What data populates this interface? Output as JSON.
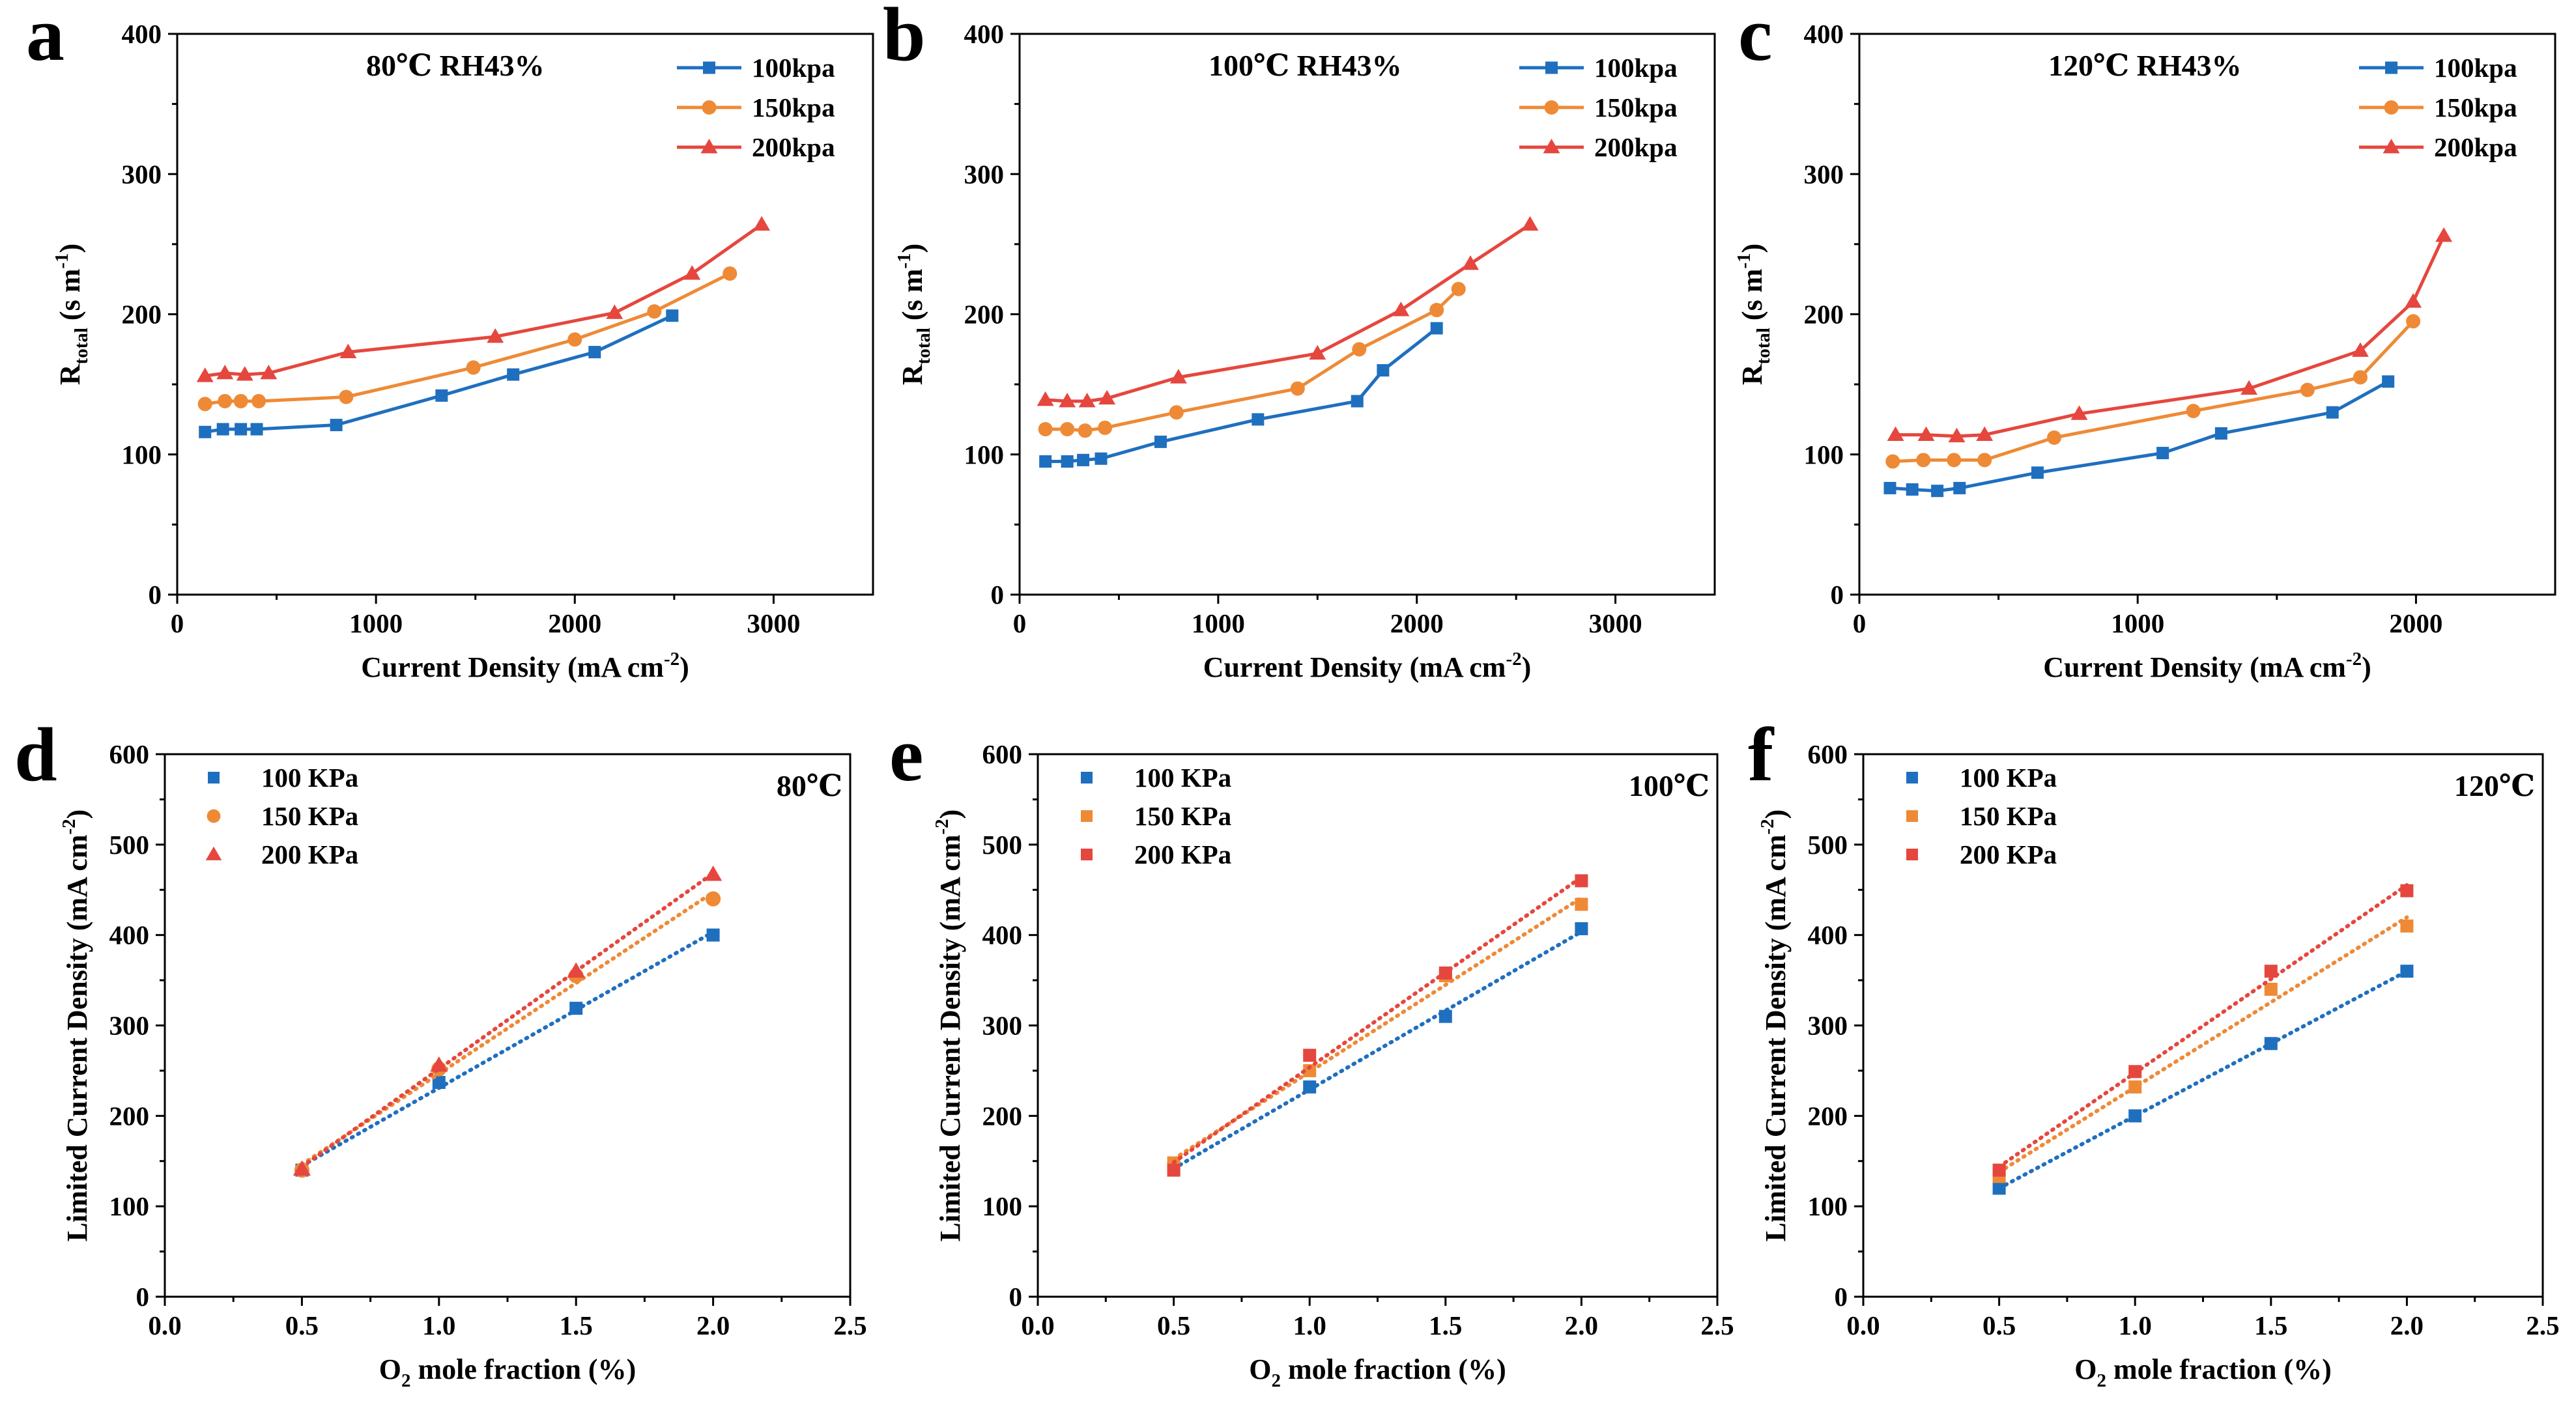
{
  "colors": {
    "series_1": "#1f6fbf",
    "series_2": "#ee8a36",
    "series_3": "#e5473e",
    "axis": "#000000"
  },
  "chart_data": [
    {
      "panel": "a",
      "type": "line",
      "title": "80℃ RH43%",
      "xlabel": "Current Density (mA cm",
      "xlabel_sup": "-2",
      "xlabel_tail": ")",
      "ylabel": "R",
      "ylabel_sub": "total",
      "ylabel_tail": " (s m",
      "ylabel_sup": "-1",
      "ylabel_end": ")",
      "xlim": [
        0,
        3500
      ],
      "ylim": [
        0,
        400
      ],
      "xticks": [
        0,
        1000,
        2000,
        3000
      ],
      "xtick_labels": [
        "0",
        "1000",
        "2000",
        "3000"
      ],
      "yticks": [
        0,
        100,
        200,
        300,
        400
      ],
      "ytick_labels": [
        "0",
        "100",
        "200",
        "300",
        "400"
      ],
      "legend": "top-right",
      "series": [
        {
          "name": "100kpa",
          "marker": "square",
          "x": [
            140,
            230,
            320,
            400,
            800,
            1330,
            1690,
            2100,
            2490
          ],
          "y": [
            116,
            118,
            118,
            118,
            121,
            142,
            157,
            173,
            199
          ]
        },
        {
          "name": "150kpa",
          "marker": "circle",
          "x": [
            140,
            240,
            320,
            410,
            850,
            1490,
            2000,
            2400,
            2780
          ],
          "y": [
            136,
            138,
            138,
            138,
            141,
            162,
            182,
            202,
            229
          ]
        },
        {
          "name": "200kpa",
          "marker": "triangle",
          "x": [
            140,
            240,
            340,
            460,
            860,
            1600,
            2200,
            2590,
            2940
          ],
          "y": [
            156,
            158,
            157,
            158,
            173,
            184,
            201,
            229,
            264
          ]
        }
      ]
    },
    {
      "panel": "b",
      "type": "line",
      "title": "100℃ RH43%",
      "xlabel": "Current Density (mA cm",
      "xlabel_sup": "-2",
      "xlabel_tail": ")",
      "ylabel": "R",
      "ylabel_sub": "total",
      "ylabel_tail": " (s m",
      "ylabel_sup": "-1",
      "ylabel_end": ")",
      "xlim": [
        0,
        3500
      ],
      "ylim": [
        0,
        400
      ],
      "xticks": [
        0,
        1000,
        2000,
        3000
      ],
      "xtick_labels": [
        "0",
        "1000",
        "2000",
        "3000"
      ],
      "yticks": [
        0,
        100,
        200,
        300,
        400
      ],
      "ytick_labels": [
        "0",
        "100",
        "200",
        "300",
        "400"
      ],
      "legend": "top-right",
      "series": [
        {
          "name": "100kpa",
          "marker": "square",
          "x": [
            130,
            240,
            320,
            410,
            710,
            1200,
            1700,
            1830,
            2100
          ],
          "y": [
            95,
            95,
            96,
            97,
            109,
            125,
            138,
            160,
            190
          ]
        },
        {
          "name": "150kpa",
          "marker": "circle",
          "x": [
            130,
            240,
            330,
            430,
            790,
            1400,
            1710,
            2100,
            2210
          ],
          "y": [
            118,
            118,
            117,
            119,
            130,
            147,
            175,
            203,
            218
          ]
        },
        {
          "name": "200kpa",
          "marker": "triangle",
          "x": [
            130,
            240,
            340,
            440,
            800,
            1500,
            1920,
            2270,
            2570
          ],
          "y": [
            139,
            138,
            138,
            140,
            155,
            172,
            203,
            236,
            264
          ]
        }
      ]
    },
    {
      "panel": "c",
      "type": "line",
      "title": "120℃ RH43%",
      "xlabel": "Current Density (mA cm",
      "xlabel_sup": "-2",
      "xlabel_tail": ")",
      "ylabel": "R",
      "ylabel_sub": "total",
      "ylabel_tail": " (s m",
      "ylabel_sup": "-1",
      "ylabel_end": ")",
      "xlim": [
        0,
        2500
      ],
      "ylim": [
        0,
        400
      ],
      "xticks": [
        0,
        1000,
        2000
      ],
      "xtick_labels": [
        "0",
        "1000",
        "2000"
      ],
      "yticks": [
        0,
        100,
        200,
        300,
        400
      ],
      "ytick_labels": [
        "0",
        "100",
        "200",
        "300",
        "400"
      ],
      "legend": "top-right",
      "series": [
        {
          "name": "100kpa",
          "marker": "square",
          "x": [
            110,
            190,
            280,
            360,
            640,
            1090,
            1300,
            1700,
            1900
          ],
          "y": [
            76,
            75,
            74,
            76,
            87,
            101,
            115,
            130,
            152
          ]
        },
        {
          "name": "150kpa",
          "marker": "circle",
          "x": [
            120,
            230,
            340,
            450,
            700,
            1200,
            1610,
            1800,
            1990
          ],
          "y": [
            95,
            96,
            96,
            96,
            112,
            131,
            146,
            155,
            195
          ]
        },
        {
          "name": "200kpa",
          "marker": "triangle",
          "x": [
            130,
            240,
            350,
            450,
            790,
            1400,
            1800,
            1990,
            2100
          ],
          "y": [
            114,
            114,
            113,
            114,
            129,
            147,
            174,
            209,
            256
          ]
        }
      ]
    },
    {
      "panel": "d",
      "type": "scatter",
      "title": "80℃",
      "xlabel": "O",
      "xlabel_sub": "2",
      "xlabel_tail": " mole fraction (%)",
      "ylabel": "Limited Current Density (mA cm",
      "ylabel_sup": "-2",
      "ylabel_end": ")",
      "xlim": [
        0,
        2.5
      ],
      "ylim": [
        0,
        600
      ],
      "xticks": [
        0,
        0.5,
        1,
        1.5,
        2,
        2.5
      ],
      "xtick_labels": [
        "0.0",
        "0.5",
        "1.0",
        "1.5",
        "2.0",
        "2.5"
      ],
      "yticks": [
        0,
        100,
        200,
        300,
        400,
        500,
        600
      ],
      "ytick_labels": [
        "0",
        "100",
        "200",
        "300",
        "400",
        "500",
        "600"
      ],
      "legend": "top-left",
      "series": [
        {
          "name": "100 KPa",
          "marker": "square",
          "x": [
            0.5,
            1.0,
            1.5,
            2.0
          ],
          "y": [
            140,
            237,
            319,
            400
          ]
        },
        {
          "name": "150 KPa",
          "marker": "circle",
          "x": [
            0.5,
            1.0,
            1.5,
            2.0
          ],
          "y": [
            140,
            252,
            355,
            440
          ]
        },
        {
          "name": "200 KPa",
          "marker": "triangle",
          "x": [
            0.5,
            1.0,
            1.5,
            2.0
          ],
          "y": [
            141,
            256,
            360,
            467
          ]
        }
      ]
    },
    {
      "panel": "e",
      "type": "scatter",
      "title": "100℃",
      "xlabel": "O",
      "xlabel_sub": "2",
      "xlabel_tail": " mole fraction (%)",
      "ylabel": "Limited Current Density (mA cm",
      "ylabel_sup": "-2",
      "ylabel_end": ")",
      "xlim": [
        0,
        2.5
      ],
      "ylim": [
        0,
        600
      ],
      "xticks": [
        0,
        0.5,
        1,
        1.5,
        2,
        2.5
      ],
      "xtick_labels": [
        "0.0",
        "0.5",
        "1.0",
        "1.5",
        "2.0",
        "2.5"
      ],
      "yticks": [
        0,
        100,
        200,
        300,
        400,
        500,
        600
      ],
      "ytick_labels": [
        "0",
        "100",
        "200",
        "300",
        "400",
        "500",
        "600"
      ],
      "legend": "top-left",
      "series": [
        {
          "name": "100 KPa",
          "marker": "square",
          "x": [
            0.5,
            1.0,
            1.5,
            2.0
          ],
          "y": [
            142,
            232,
            310,
            407
          ]
        },
        {
          "name": "150 KPa",
          "marker": "square",
          "x": [
            0.5,
            1.0,
            1.5,
            2.0
          ],
          "y": [
            148,
            250,
            355,
            434
          ]
        },
        {
          "name": "200 KPa",
          "marker": "square",
          "x": [
            0.5,
            1.0,
            1.5,
            2.0
          ],
          "y": [
            140,
            267,
            358,
            460
          ]
        }
      ]
    },
    {
      "panel": "f",
      "type": "scatter",
      "title": "120℃",
      "xlabel": "O",
      "xlabel_sub": "2",
      "xlabel_tail": " mole fraction (%)",
      "ylabel": "Limited Current Density (mA cm",
      "ylabel_sup": "-2",
      "ylabel_end": ")",
      "xlim": [
        0,
        2.5
      ],
      "ylim": [
        0,
        600
      ],
      "xticks": [
        0,
        0.5,
        1,
        1.5,
        2,
        2.5
      ],
      "xtick_labels": [
        "0.0",
        "0.5",
        "1.0",
        "1.5",
        "2.0",
        "2.5"
      ],
      "yticks": [
        0,
        100,
        200,
        300,
        400,
        500,
        600
      ],
      "ytick_labels": [
        "0",
        "100",
        "200",
        "300",
        "400",
        "500",
        "600"
      ],
      "legend": "top-left",
      "series": [
        {
          "name": "100 KPa",
          "marker": "square",
          "x": [
            0.5,
            1.0,
            1.5,
            2.0
          ],
          "y": [
            120,
            200,
            280,
            360
          ]
        },
        {
          "name": "150 KPa",
          "marker": "square",
          "x": [
            0.5,
            1.0,
            1.5,
            2.0
          ],
          "y": [
            133,
            232,
            340,
            410
          ]
        },
        {
          "name": "200 KPa",
          "marker": "square",
          "x": [
            0.5,
            1.0,
            1.5,
            2.0
          ],
          "y": [
            140,
            249,
            360,
            449
          ]
        }
      ]
    }
  ]
}
